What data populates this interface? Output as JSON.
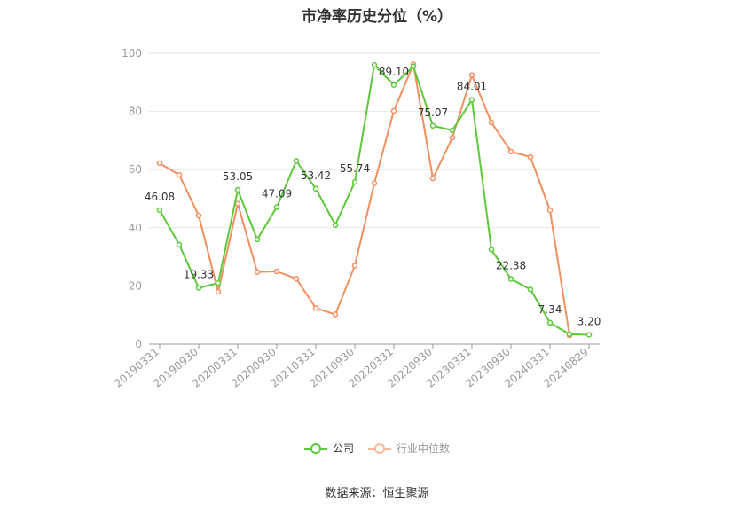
{
  "chart_data": {
    "type": "line",
    "title": "市净率历史分位（%）",
    "source": "数据来源：恒生聚源",
    "ylim": [
      0,
      100
    ],
    "y_ticks": [
      0,
      20,
      40,
      60,
      80,
      100
    ],
    "grid": true,
    "legend_position": "bottom",
    "categories": [
      "20190331",
      "20190630",
      "20190930",
      "20191231",
      "20200331",
      "20200630",
      "20200930",
      "20201231",
      "20210331",
      "20210630",
      "20210930",
      "20211231",
      "20220331",
      "20220630",
      "20220930",
      "20221231",
      "20230331",
      "20230630",
      "20230930",
      "20231231",
      "20240331",
      "20240630",
      "20240829"
    ],
    "x_tick_labels": [
      "20190331",
      "20190930",
      "20200331",
      "20200930",
      "20210331",
      "20210930",
      "20220331",
      "20220930",
      "20230331",
      "20230930",
      "20240331",
      "20240829"
    ],
    "series": [
      {
        "name": "公司",
        "color": "#5cc93a",
        "values": [
          46.08,
          34.2,
          19.33,
          21.0,
          53.05,
          36.0,
          47.09,
          63.0,
          53.42,
          41.0,
          55.74,
          96.0,
          89.1,
          95.5,
          75.07,
          73.5,
          84.01,
          32.5,
          22.38,
          18.8,
          7.34,
          3.4,
          3.2
        ],
        "data_labels": [
          {
            "index": 0,
            "text": "46.08"
          },
          {
            "index": 2,
            "text": "19.33"
          },
          {
            "index": 4,
            "text": "53.05"
          },
          {
            "index": 6,
            "text": "47.09"
          },
          {
            "index": 8,
            "text": "53.42"
          },
          {
            "index": 10,
            "text": "55.74"
          },
          {
            "index": 12,
            "text": "89.10"
          },
          {
            "index": 14,
            "text": "75.07"
          },
          {
            "index": 16,
            "text": "84.01"
          },
          {
            "index": 18,
            "text": "22.38"
          },
          {
            "index": 20,
            "text": "7.34"
          },
          {
            "index": 22,
            "text": "3.20"
          }
        ]
      },
      {
        "name": "行业中位数",
        "color": "#f28f5f",
        "values": [
          62.2,
          58.2,
          44.2,
          18.0,
          48.3,
          24.8,
          25.0,
          22.5,
          12.4,
          10.2,
          27.0,
          55.3,
          80.2,
          96.2,
          57.0,
          71.0,
          92.5,
          76.2,
          66.2,
          64.3,
          46.0,
          3.0,
          null
        ]
      }
    ]
  }
}
